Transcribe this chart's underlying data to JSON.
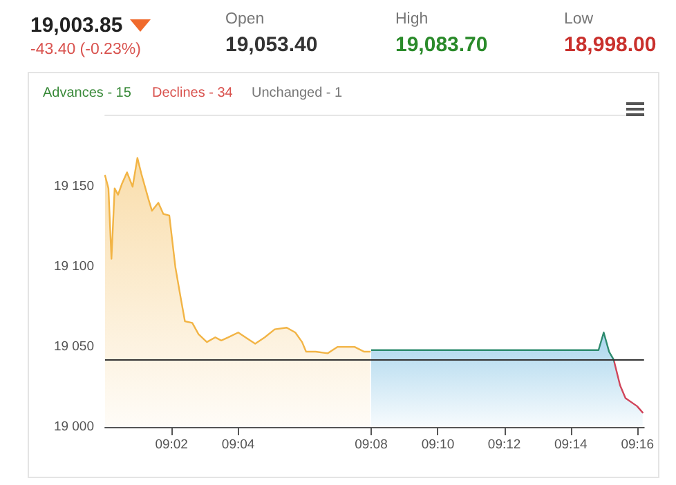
{
  "chart_data": {
    "type": "area",
    "annotations": [
      "19,003.85",
      "-43.40 (-0.23%)",
      "Open",
      "19,053.40",
      "High",
      "19,083.70",
      "Low",
      "18,998.00",
      "Advances - 15",
      "Declines - 34",
      "Unchanged - 1"
    ],
    "series": [
      {
        "color": "#f2b445",
        "x": [
          9.0,
          9.0017,
          9.0032,
          9.0048,
          9.0065,
          9.0085,
          9.011,
          9.0138,
          9.0162,
          9.0182,
          9.0218,
          9.0235,
          9.0267,
          9.0292,
          9.0322,
          9.0352,
          9.0377,
          9.04,
          9.0437,
          9.0468,
          9.051,
          9.0552,
          9.0582,
          9.0618,
          9.0667,
          9.0715,
          9.0752,
          9.08,
          9.085,
          9.091,
          9.0953,
          9.0987,
          9.1007,
          9.1055,
          9.1115,
          9.1165,
          9.125,
          9.1298,
          9.1327
        ],
        "values": [
          19157,
          19149,
          19105,
          19149,
          19145,
          19152,
          19159,
          19150,
          19168,
          19158,
          19142,
          19135,
          19140,
          19133,
          19132,
          19100,
          19082,
          19066,
          19065,
          19058,
          19053,
          19056,
          19054,
          19056,
          19059,
          19055,
          19052,
          19056,
          19061,
          19062,
          19059,
          19053,
          19047,
          19047,
          19046,
          19050,
          19050,
          19047,
          19047
        ]
      },
      {
        "color": "#3fa2d6",
        "colors": [
          "#2e8b6e",
          "#2e8b6e",
          "#2e8b6e",
          "#2e8b6e",
          "#d0455a",
          "#d0455a",
          "#d0455a",
          "#d0455a",
          "#d0455a"
        ],
        "x": [
          9.1333,
          9.2472,
          9.2498,
          9.2525,
          9.2548,
          9.258,
          9.2607,
          9.2665,
          9.2693
        ],
        "values": [
          19048,
          19048,
          19059,
          19047,
          19042,
          19026,
          19018,
          19013,
          19009
        ]
      }
    ],
    "ref_lines": [
      {
        "axis": "y",
        "value": 19042,
        "color": "#333333"
      }
    ],
    "xlim": [
      9.0,
      9.27
    ],
    "xticks": [
      {
        "value": 9.0333,
        "label": "09:02"
      },
      {
        "value": 9.0667,
        "label": "09:04"
      },
      {
        "value": 9.1333,
        "label": "09:08"
      },
      {
        "value": 9.1667,
        "label": "09:10"
      },
      {
        "value": 9.2,
        "label": "09:12"
      },
      {
        "value": 9.2333,
        "label": "09:14"
      },
      {
        "value": 9.2667,
        "label": "09:16"
      }
    ],
    "ylim": [
      19000,
      19195
    ],
    "yticks": [
      {
        "value": 19000,
        "label": "19 000"
      },
      {
        "value": 19050,
        "label": "19 050"
      },
      {
        "value": 19100,
        "label": "19 100"
      },
      {
        "value": 19150,
        "label": "19 150"
      }
    ],
    "grid": false,
    "marker": "none"
  }
}
